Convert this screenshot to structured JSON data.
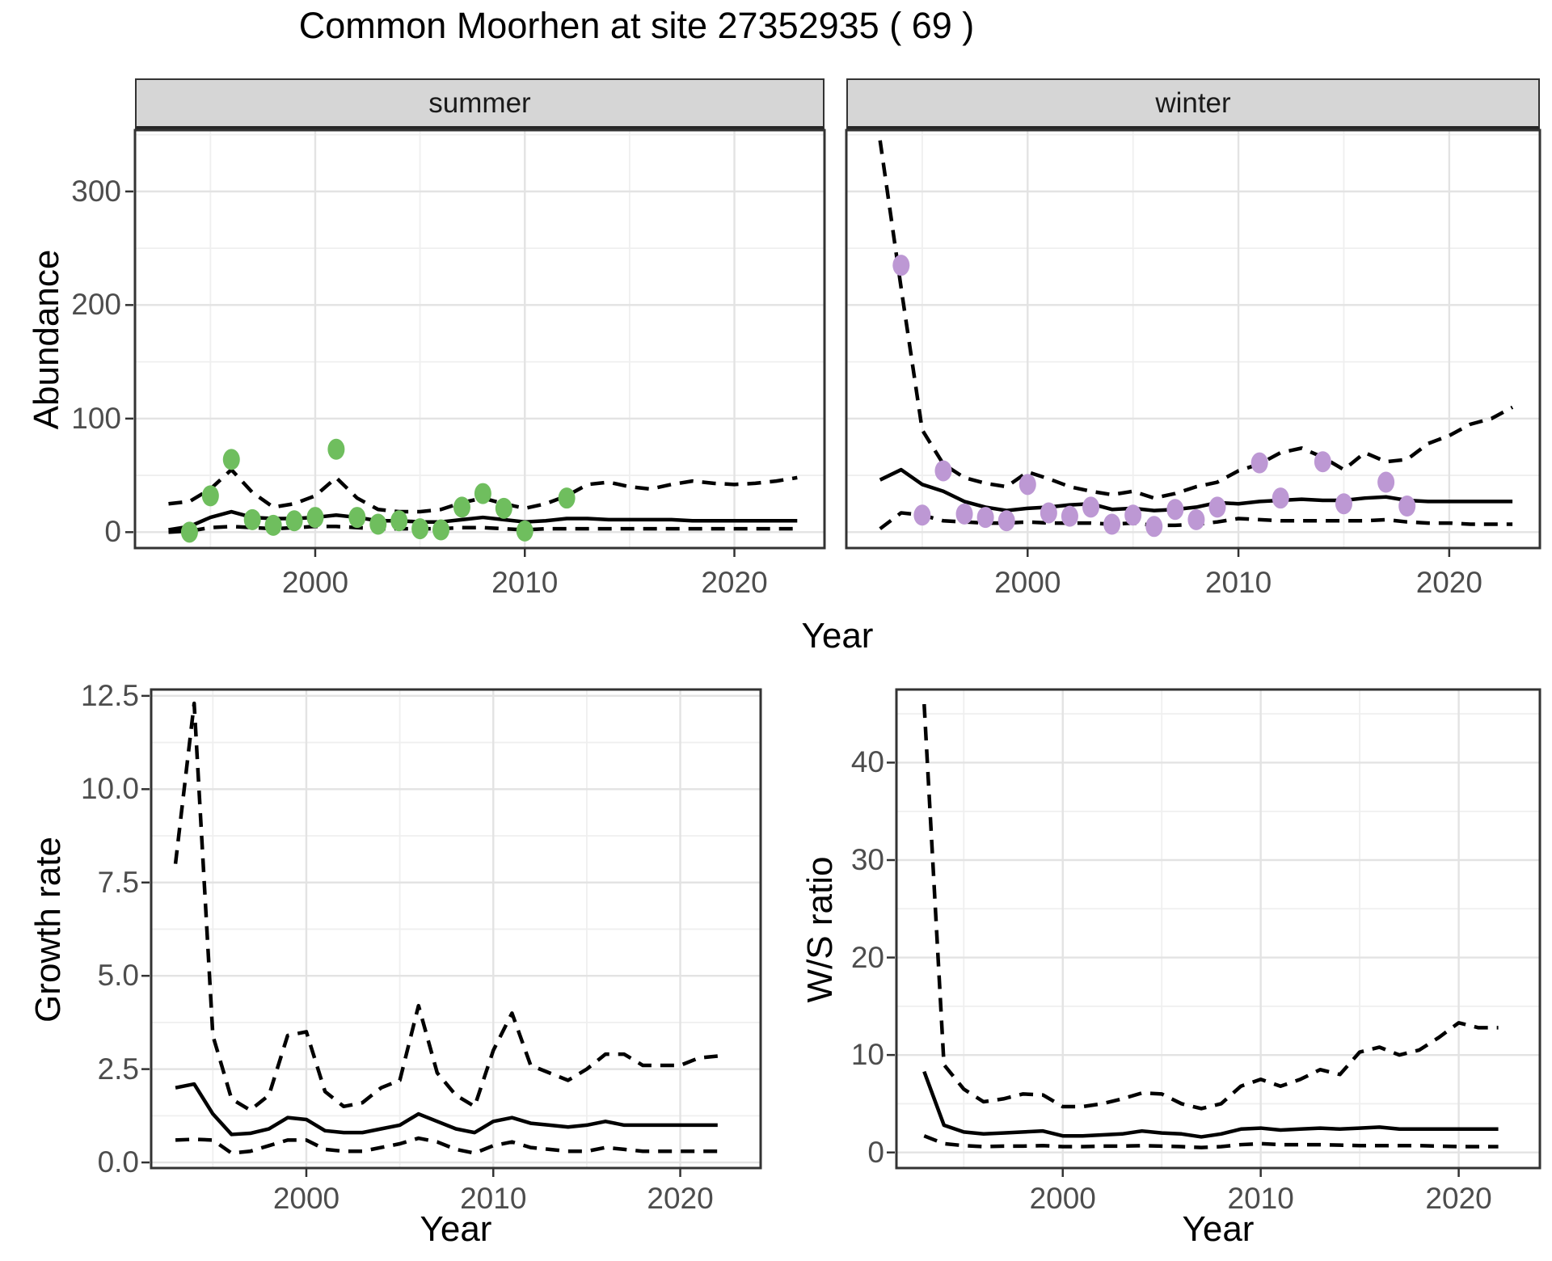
{
  "title": "Common Moorhen at site 27352935 ( 69 )",
  "axes": {
    "abundance_label": "Abundance",
    "growth_label": "Growth rate",
    "ws_label": "W/S ratio",
    "year_label": "Year"
  },
  "facets": {
    "summer": "summer",
    "winter": "winter"
  },
  "colors": {
    "summer_points": "#6fbe5e",
    "winter_points": "#bd98d4",
    "line": "#000000",
    "grid_major": "#e3e3e3",
    "grid_minor": "#efefef",
    "panel_border": "#333333",
    "strip_bg": "#d6d6d6",
    "tick_mark": "#333333",
    "tick_text": "#4d4d4d"
  },
  "chart_data": [
    {
      "type": "line",
      "facet": "summer",
      "xlabel": "Year",
      "ylabel": "Abundance",
      "legend_position": "none",
      "grid": true,
      "xlim": [
        1991.4,
        2024.3
      ],
      "ylim": [
        -14,
        354
      ],
      "x_major": [
        2000,
        2010,
        2020
      ],
      "x_major_labels": [
        "2000",
        "2010",
        "2020"
      ],
      "x_minor": [
        1995,
        2005,
        2015
      ],
      "y_major": [
        0,
        100,
        200,
        300
      ],
      "y_major_labels": [
        "0",
        "100",
        "200",
        "300"
      ],
      "y_minor": [
        50,
        150,
        250,
        350
      ],
      "years": [
        1993,
        1994,
        1995,
        1996,
        1997,
        1998,
        1999,
        2000,
        2001,
        2002,
        2003,
        2004,
        2005,
        2006,
        2007,
        2008,
        2009,
        2010,
        2011,
        2012,
        2013,
        2014,
        2015,
        2016,
        2017,
        2018,
        2019,
        2020,
        2021,
        2022,
        2023
      ],
      "series": [
        {
          "name": "upper 95% CI",
          "style": "dashed",
          "values": [
            25,
            27,
            38,
            55,
            35,
            22,
            25,
            32,
            48,
            30,
            20,
            18,
            18,
            20,
            26,
            30,
            25,
            21,
            25,
            32,
            42,
            44,
            40,
            38,
            42,
            45,
            43,
            42,
            43,
            45,
            48
          ]
        },
        {
          "name": "median",
          "style": "solid",
          "values": [
            2,
            5,
            13,
            18,
            13,
            12,
            12,
            13,
            15,
            13,
            10,
            10,
            9,
            9,
            11,
            13,
            11,
            9,
            10,
            12,
            12,
            11,
            11,
            11,
            11,
            10,
            10,
            10,
            10,
            10,
            10
          ]
        },
        {
          "name": "lower 95% CI",
          "style": "dashed",
          "values": [
            0,
            1,
            4,
            5,
            4,
            3,
            4,
            5,
            5,
            4,
            3,
            3,
            3,
            3,
            4,
            4,
            3,
            2,
            3,
            3,
            3,
            3,
            3,
            3,
            3,
            3,
            3,
            3,
            3,
            3,
            3
          ]
        }
      ],
      "points": {
        "name": "observed counts",
        "color": "#6fbe5e",
        "x": [
          1994,
          1995,
          1996,
          1997,
          1998,
          1999,
          2000,
          2001,
          2002,
          2003,
          2004,
          2005,
          2006,
          2007,
          2008,
          2009,
          2010,
          2012
        ],
        "y": [
          0,
          32,
          64,
          11,
          6,
          10,
          13,
          73,
          13,
          7,
          10,
          3,
          2,
          22,
          34,
          21,
          1,
          30
        ]
      }
    },
    {
      "type": "line",
      "facet": "winter",
      "xlabel": "Year",
      "ylabel": "Abundance",
      "legend_position": "none",
      "grid": true,
      "xlim": [
        1991.4,
        2024.3
      ],
      "ylim": [
        -14,
        354
      ],
      "x_major": [
        2000,
        2010,
        2020
      ],
      "x_major_labels": [
        "2000",
        "2010",
        "2020"
      ],
      "x_minor": [
        1995,
        2005,
        2015
      ],
      "y_major": [
        0,
        100,
        200,
        300
      ],
      "y_major_labels": [
        "0",
        "100",
        "200",
        "300"
      ],
      "y_minor": [
        50,
        150,
        250,
        350
      ],
      "years": [
        1993,
        1994,
        1995,
        1996,
        1997,
        1998,
        1999,
        2000,
        2001,
        2002,
        2003,
        2004,
        2005,
        2006,
        2007,
        2008,
        2009,
        2010,
        2011,
        2012,
        2013,
        2014,
        2015,
        2016,
        2017,
        2018,
        2019,
        2020,
        2021,
        2022,
        2023
      ],
      "series": [
        {
          "name": "upper 95% CI",
          "style": "dashed",
          "values": [
            345,
            215,
            90,
            60,
            48,
            43,
            40,
            53,
            47,
            40,
            36,
            33,
            36,
            30,
            34,
            40,
            44,
            54,
            60,
            70,
            74,
            66,
            55,
            70,
            62,
            64,
            78,
            85,
            95,
            100,
            110
          ]
        },
        {
          "name": "median",
          "style": "solid",
          "values": [
            46,
            55,
            42,
            36,
            27,
            22,
            19,
            21,
            22,
            24,
            25,
            20,
            21,
            19,
            20,
            22,
            26,
            25,
            27,
            28,
            29,
            28,
            28,
            30,
            31,
            28,
            27,
            27,
            27,
            27,
            27
          ]
        },
        {
          "name": "lower 95% CI",
          "style": "dashed",
          "values": [
            3,
            17,
            15,
            10,
            9,
            8,
            8,
            9,
            8,
            8,
            8,
            7,
            8,
            6,
            6,
            7,
            9,
            12,
            11,
            10,
            10,
            10,
            10,
            10,
            11,
            9,
            8,
            8,
            7,
            7,
            7
          ]
        }
      ],
      "points": {
        "name": "observed counts",
        "color": "#bd98d4",
        "x": [
          1994,
          1995,
          1996,
          1997,
          1998,
          1999,
          2000,
          2001,
          2002,
          2003,
          2004,
          2005,
          2006,
          2007,
          2008,
          2009,
          2011,
          2012,
          2014,
          2015,
          2017,
          2018
        ],
        "y": [
          235,
          15,
          54,
          16,
          13,
          10,
          42,
          17,
          14,
          22,
          7,
          15,
          5,
          20,
          11,
          22,
          61,
          30,
          62,
          25,
          44,
          23
        ]
      }
    },
    {
      "type": "line",
      "facet": null,
      "xlabel": "Year",
      "ylabel": "Growth rate",
      "legend_position": "none",
      "grid": true,
      "xlim": [
        1991.7,
        2024.3
      ],
      "ylim": [
        -0.15,
        12.67
      ],
      "x_major": [
        2000,
        2010,
        2020
      ],
      "x_major_labels": [
        "2000",
        "2010",
        "2020"
      ],
      "x_minor": [
        1995,
        2005,
        2015
      ],
      "y_major": [
        0,
        2.5,
        5,
        7.5,
        10,
        12.5
      ],
      "y_major_labels": [
        "0.0",
        "2.5",
        "5.0",
        "7.5",
        "10.0",
        "12.5"
      ],
      "y_minor": [
        1.25,
        3.75,
        6.25,
        8.75,
        11.25
      ],
      "years": [
        1993,
        1994,
        1995,
        1996,
        1997,
        1998,
        1999,
        2000,
        2001,
        2002,
        2003,
        2004,
        2005,
        2006,
        2007,
        2008,
        2009,
        2010,
        2011,
        2012,
        2013,
        2014,
        2015,
        2016,
        2017,
        2018,
        2019,
        2020,
        2021,
        2022
      ],
      "series": [
        {
          "name": "upper 95% CI",
          "style": "dashed",
          "values": [
            8.0,
            12.3,
            3.4,
            1.7,
            1.4,
            1.8,
            3.4,
            3.5,
            1.9,
            1.5,
            1.6,
            2.0,
            2.2,
            4.2,
            2.4,
            1.8,
            1.5,
            3.0,
            4.0,
            2.6,
            2.4,
            2.2,
            2.5,
            2.9,
            2.9,
            2.6,
            2.6,
            2.6,
            2.8,
            2.85
          ]
        },
        {
          "name": "median",
          "style": "solid",
          "values": [
            2.0,
            2.1,
            1.3,
            0.75,
            0.78,
            0.9,
            1.2,
            1.15,
            0.85,
            0.8,
            0.8,
            0.9,
            1.0,
            1.3,
            1.1,
            0.9,
            0.8,
            1.1,
            1.2,
            1.05,
            1.0,
            0.95,
            1.0,
            1.1,
            1.0,
            1.0,
            1.0,
            1.0,
            1.0,
            1.0
          ]
        },
        {
          "name": "lower 95% CI",
          "style": "dashed",
          "values": [
            0.6,
            0.62,
            0.6,
            0.25,
            0.3,
            0.45,
            0.6,
            0.6,
            0.35,
            0.3,
            0.3,
            0.4,
            0.5,
            0.65,
            0.55,
            0.35,
            0.25,
            0.45,
            0.55,
            0.4,
            0.35,
            0.3,
            0.3,
            0.4,
            0.35,
            0.3,
            0.3,
            0.3,
            0.3,
            0.3
          ]
        }
      ],
      "points": null
    },
    {
      "type": "line",
      "facet": null,
      "xlabel": "Year",
      "ylabel": "W/S ratio",
      "legend_position": "none",
      "grid": true,
      "xlim": [
        1991.6,
        2024.1
      ],
      "ylim": [
        -1.6,
        47.5
      ],
      "x_major": [
        2000,
        2010,
        2020
      ],
      "x_major_labels": [
        "2000",
        "2010",
        "2020"
      ],
      "x_minor": [
        1995,
        2005,
        2015
      ],
      "y_major": [
        0,
        10,
        20,
        30,
        40
      ],
      "y_major_labels": [
        "0",
        "10",
        "20",
        "30",
        "40"
      ],
      "y_minor": [
        5,
        15,
        25,
        35,
        45
      ],
      "years": [
        1993,
        1994,
        1995,
        1996,
        1997,
        1998,
        1999,
        2000,
        2001,
        2002,
        2003,
        2004,
        2005,
        2006,
        2007,
        2008,
        2009,
        2010,
        2011,
        2012,
        2013,
        2014,
        2015,
        2016,
        2017,
        2018,
        2019,
        2020,
        2021,
        2022
      ],
      "series": [
        {
          "name": "upper 95% CI",
          "style": "dashed",
          "values": [
            46,
            9,
            6.5,
            5.2,
            5.5,
            6.0,
            5.9,
            4.7,
            4.7,
            5.0,
            5.5,
            6.1,
            6.0,
            5.0,
            4.5,
            5.0,
            6.8,
            7.5,
            6.8,
            7.5,
            8.5,
            8.0,
            10.3,
            10.8,
            10.0,
            10.5,
            11.8,
            13.3,
            12.8,
            12.8
          ]
        },
        {
          "name": "median",
          "style": "solid",
          "values": [
            8.3,
            2.8,
            2.1,
            1.9,
            2.0,
            2.1,
            2.2,
            1.7,
            1.7,
            1.8,
            1.9,
            2.2,
            2.0,
            1.9,
            1.6,
            1.9,
            2.4,
            2.5,
            2.3,
            2.4,
            2.5,
            2.4,
            2.5,
            2.6,
            2.4,
            2.4,
            2.4,
            2.4,
            2.4,
            2.4
          ]
        },
        {
          "name": "lower 95% CI",
          "style": "dashed",
          "values": [
            1.7,
            0.9,
            0.7,
            0.6,
            0.65,
            0.65,
            0.7,
            0.6,
            0.6,
            0.65,
            0.65,
            0.7,
            0.65,
            0.6,
            0.5,
            0.6,
            0.8,
            0.9,
            0.8,
            0.8,
            0.8,
            0.75,
            0.7,
            0.7,
            0.7,
            0.7,
            0.65,
            0.6,
            0.6,
            0.6
          ]
        }
      ],
      "points": null
    }
  ]
}
